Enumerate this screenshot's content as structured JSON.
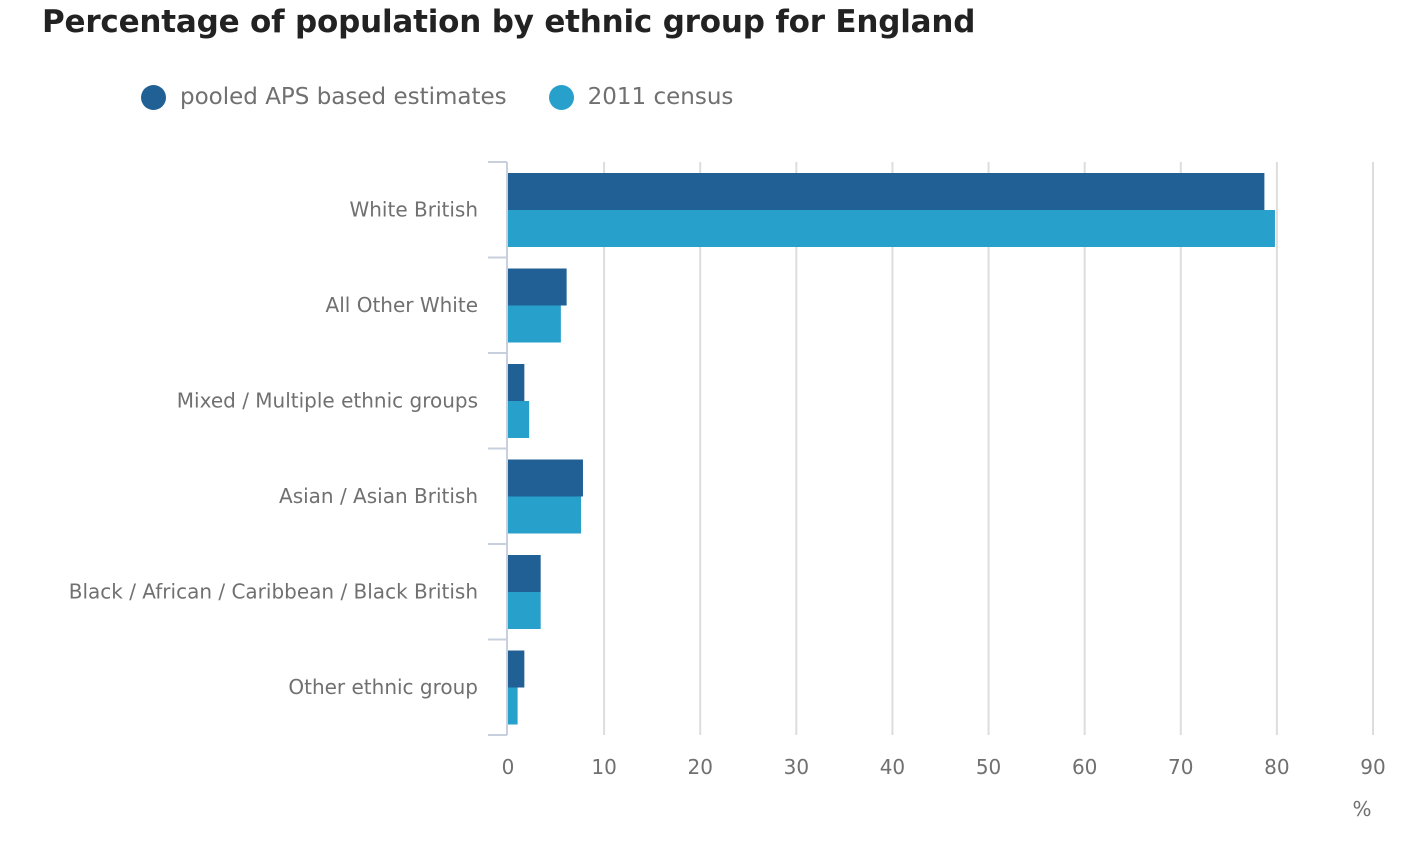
{
  "colors": {
    "title": "#222222",
    "text": "#707070",
    "grid": "#dddddd",
    "axis": "#c8d0de"
  },
  "chart_data": {
    "type": "bar",
    "orientation": "horizontal",
    "title": "Percentage of population by ethnic group for England",
    "xlabel": "%",
    "ylabel": "",
    "categories": [
      "White British",
      "All Other White",
      "Mixed / Multiple ethnic groups",
      "Asian / Asian British",
      "Black / African / Caribbean / Black British",
      "Other ethnic group"
    ],
    "series": [
      {
        "name": "pooled APS based estimates",
        "color": "#206095",
        "values": [
          78.7,
          6.1,
          1.7,
          7.8,
          3.4,
          1.7
        ]
      },
      {
        "name": "2011 census",
        "color": "#27a0cc",
        "values": [
          79.8,
          5.5,
          2.2,
          7.6,
          3.4,
          1.0
        ]
      }
    ],
    "xlim": [
      0,
      90
    ],
    "xticks": [
      0,
      10,
      20,
      30,
      40,
      50,
      60,
      70,
      80,
      90
    ],
    "grid": true,
    "legend_position": "top-left"
  }
}
